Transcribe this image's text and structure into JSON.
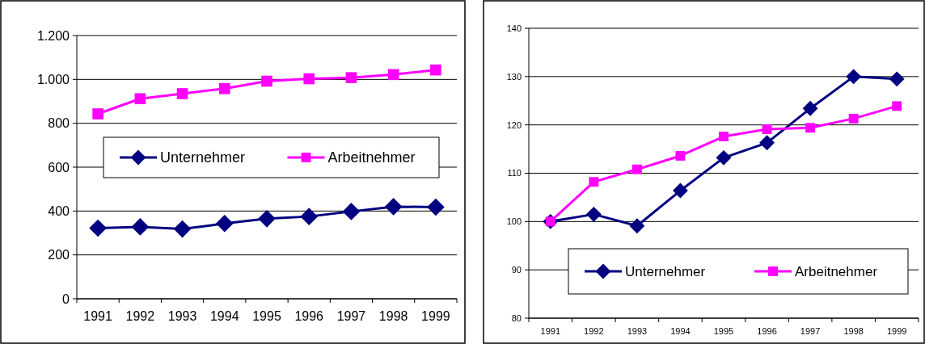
{
  "chart_data": [
    {
      "type": "line",
      "categories": [
        "1991",
        "1992",
        "1993",
        "1994",
        "1995",
        "1996",
        "1997",
        "1998",
        "1999"
      ],
      "series": [
        {
          "name": "Unternehmer",
          "color": "#000080",
          "marker": "diamond",
          "values": [
            322,
            328,
            318,
            343,
            365,
            375,
            398,
            420,
            418
          ]
        },
        {
          "name": "Arbeitnehmer",
          "color": "#ff00ff",
          "marker": "square",
          "values": [
            843,
            912,
            935,
            958,
            992,
            1003,
            1008,
            1022,
            1043
          ]
        }
      ],
      "ylim": [
        0,
        1200
      ],
      "yticks": [
        0,
        200,
        400,
        600,
        800,
        {
          "value": 1000,
          "label": "1.000"
        },
        {
          "value": 1200,
          "label": "1.200"
        }
      ],
      "grid": "y",
      "legend": "center"
    },
    {
      "type": "line",
      "categories": [
        "1991",
        "1992",
        "1993",
        "1994",
        "1995",
        "1996",
        "1997",
        "1998",
        "1999"
      ],
      "series": [
        {
          "name": "Unternehmer",
          "color": "#000080",
          "marker": "diamond",
          "values": [
            100,
            101.5,
            99.1,
            106.4,
            113.2,
            116.3,
            123.4,
            130,
            129.5
          ]
        },
        {
          "name": "Arbeitnehmer",
          "color": "#ff00ff",
          "marker": "square",
          "values": [
            100,
            108.2,
            110.8,
            113.6,
            117.6,
            119.1,
            119.4,
            121.3,
            123.9
          ]
        }
      ],
      "ylim": [
        80,
        140
      ],
      "yticks": [
        80,
        90,
        100,
        110,
        120,
        130,
        140
      ],
      "grid": "y",
      "legend": "bottom"
    }
  ]
}
